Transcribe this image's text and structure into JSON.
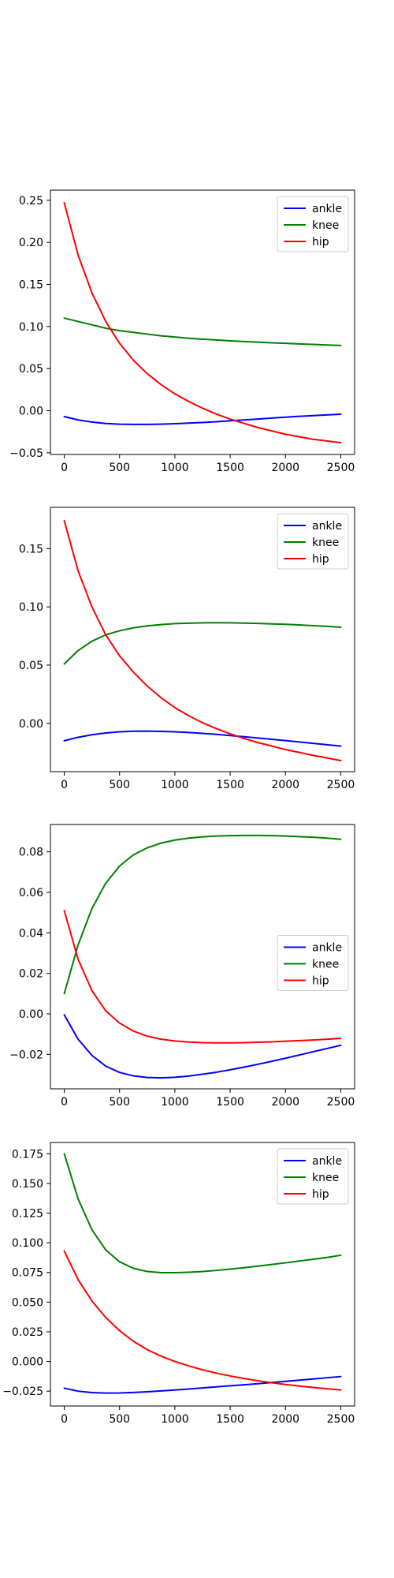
{
  "chart_data": [
    {
      "type": "line",
      "title": "",
      "xlabel": "",
      "ylabel": "",
      "xlim": [
        -125,
        2625
      ],
      "ylim": [
        -0.052,
        0.262
      ],
      "xticks": [
        0,
        500,
        1000,
        1500,
        2000,
        2500
      ],
      "yticks": [
        -0.05,
        0.0,
        0.05,
        0.1,
        0.15,
        0.2,
        0.25
      ],
      "ytick_labels": [
        "−0.05",
        "0.00",
        "0.05",
        "0.10",
        "0.15",
        "0.20",
        "0.25"
      ],
      "legend_position": "top-right",
      "grid": false,
      "x": [
        0,
        125,
        250,
        375,
        500,
        625,
        750,
        875,
        1000,
        1125,
        1250,
        1375,
        1500,
        1625,
        1750,
        1875,
        2000,
        2125,
        2250,
        2375,
        2500
      ],
      "series": [
        {
          "name": "ankle",
          "color": "#0000ff",
          "values": [
            -0.007,
            -0.011,
            -0.0135,
            -0.0152,
            -0.016,
            -0.0163,
            -0.0163,
            -0.016,
            -0.0155,
            -0.0148,
            -0.014,
            -0.0131,
            -0.0121,
            -0.011,
            -0.0099,
            -0.0088,
            -0.0077,
            -0.0067,
            -0.0058,
            -0.005,
            -0.0042
          ]
        },
        {
          "name": "knee",
          "color": "#008000",
          "values": [
            0.11,
            0.106,
            0.102,
            0.098,
            0.095,
            0.093,
            0.091,
            0.089,
            0.0875,
            0.086,
            0.085,
            0.084,
            0.083,
            0.0822,
            0.0814,
            0.0806,
            0.08,
            0.0793,
            0.0787,
            0.0781,
            0.0775
          ]
        },
        {
          "name": "hip",
          "color": "#ff0000",
          "values": [
            0.247,
            0.185,
            0.14,
            0.106,
            0.08,
            0.06,
            0.044,
            0.031,
            0.02,
            0.011,
            0.003,
            -0.004,
            -0.01,
            -0.015,
            -0.02,
            -0.024,
            -0.028,
            -0.031,
            -0.034,
            -0.036,
            -0.038
          ]
        }
      ]
    },
    {
      "type": "line",
      "title": "",
      "xlabel": "",
      "ylabel": "",
      "xlim": [
        -125,
        2625
      ],
      "ylim": [
        -0.0415,
        0.1855
      ],
      "xticks": [
        0,
        500,
        1000,
        1500,
        2000,
        2500
      ],
      "yticks": [
        0.0,
        0.05,
        0.1,
        0.15
      ],
      "ytick_labels": [
        "0.00",
        "0.05",
        "0.10",
        "0.15"
      ],
      "legend_position": "top-right",
      "grid": false,
      "x": [
        0,
        125,
        250,
        375,
        500,
        625,
        750,
        875,
        1000,
        1125,
        1250,
        1375,
        1500,
        1625,
        1750,
        1875,
        2000,
        2125,
        2250,
        2375,
        2500
      ],
      "series": [
        {
          "name": "ankle",
          "color": "#0000ff",
          "values": [
            -0.015,
            -0.012,
            -0.0098,
            -0.0083,
            -0.0073,
            -0.0068,
            -0.0067,
            -0.0069,
            -0.0073,
            -0.0079,
            -0.0086,
            -0.0095,
            -0.0105,
            -0.0115,
            -0.0126,
            -0.0137,
            -0.0148,
            -0.016,
            -0.0172,
            -0.0184,
            -0.0196
          ]
        },
        {
          "name": "knee",
          "color": "#008000",
          "values": [
            0.051,
            0.0625,
            0.0705,
            0.076,
            0.0795,
            0.082,
            0.0837,
            0.0848,
            0.0856,
            0.086,
            0.0863,
            0.0864,
            0.0863,
            0.0861,
            0.0858,
            0.0854,
            0.085,
            0.0845,
            0.0839,
            0.0833,
            0.0825
          ]
        },
        {
          "name": "hip",
          "color": "#ff0000",
          "values": [
            0.174,
            0.131,
            0.1,
            0.076,
            0.058,
            0.044,
            0.032,
            0.022,
            0.0135,
            0.0065,
            0.0005,
            -0.0045,
            -0.009,
            -0.013,
            -0.0165,
            -0.0195,
            -0.0225,
            -0.025,
            -0.0275,
            -0.0297,
            -0.032
          ]
        }
      ]
    },
    {
      "type": "line",
      "title": "",
      "xlabel": "",
      "ylabel": "",
      "xlim": [
        -125,
        2625
      ],
      "ylim": [
        -0.037,
        0.0935
      ],
      "xticks": [
        0,
        500,
        1000,
        1500,
        2000,
        2500
      ],
      "yticks": [
        -0.02,
        0.0,
        0.02,
        0.04,
        0.06,
        0.08
      ],
      "ytick_labels": [
        "−0.02",
        "0.00",
        "0.02",
        "0.04",
        "0.06",
        "0.08"
      ],
      "legend_position": "center-right",
      "grid": false,
      "x": [
        0,
        125,
        250,
        375,
        500,
        625,
        750,
        875,
        1000,
        1125,
        1250,
        1375,
        1500,
        1625,
        1750,
        1875,
        2000,
        2125,
        2250,
        2375,
        2500
      ],
      "series": [
        {
          "name": "ankle",
          "color": "#0000ff",
          "values": [
            -0.0005,
            -0.0125,
            -0.0205,
            -0.0258,
            -0.0289,
            -0.0306,
            -0.0314,
            -0.0316,
            -0.0313,
            -0.0307,
            -0.0298,
            -0.0288,
            -0.0276,
            -0.0263,
            -0.0249,
            -0.0234,
            -0.0219,
            -0.0203,
            -0.0187,
            -0.0171,
            -0.0155
          ]
        },
        {
          "name": "knee",
          "color": "#008000",
          "values": [
            0.01,
            0.034,
            0.052,
            0.0645,
            0.073,
            0.0785,
            0.082,
            0.0843,
            0.0858,
            0.0868,
            0.0874,
            0.0878,
            0.088,
            0.0881,
            0.0881,
            0.088,
            0.0878,
            0.0875,
            0.0872,
            0.0868,
            0.0862
          ]
        },
        {
          "name": "hip",
          "color": "#ff0000",
          "values": [
            0.051,
            0.027,
            0.0115,
            0.0015,
            -0.0045,
            -0.0085,
            -0.011,
            -0.0125,
            -0.0134,
            -0.0139,
            -0.0142,
            -0.0143,
            -0.0143,
            -0.0142,
            -0.014,
            -0.0138,
            -0.0135,
            -0.0132,
            -0.0129,
            -0.0125,
            -0.0121
          ]
        }
      ]
    },
    {
      "type": "line",
      "title": "",
      "xlabel": "",
      "ylabel": "",
      "xlim": [
        -125,
        2625
      ],
      "ylim": [
        -0.0375,
        0.1845
      ],
      "xticks": [
        0,
        500,
        1000,
        1500,
        2000,
        2500
      ],
      "yticks": [
        -0.025,
        0.0,
        0.025,
        0.05,
        0.075,
        0.1,
        0.125,
        0.15,
        0.175
      ],
      "ytick_labels": [
        "−0.025",
        "0.000",
        "0.025",
        "0.050",
        "0.075",
        "0.100",
        "0.125",
        "0.150",
        "0.175"
      ],
      "legend_position": "top-right",
      "grid": false,
      "x": [
        0,
        125,
        250,
        375,
        500,
        625,
        750,
        875,
        1000,
        1125,
        1250,
        1375,
        1500,
        1625,
        1750,
        1875,
        2000,
        2125,
        2250,
        2375,
        2500
      ],
      "series": [
        {
          "name": "ankle",
          "color": "#0000ff",
          "values": [
            -0.0225,
            -0.025,
            -0.0262,
            -0.0266,
            -0.0265,
            -0.0261,
            -0.0255,
            -0.0248,
            -0.024,
            -0.0232,
            -0.0223,
            -0.0214,
            -0.0205,
            -0.0196,
            -0.0187,
            -0.0177,
            -0.0167,
            -0.0157,
            -0.0147,
            -0.0137,
            -0.0127
          ]
        },
        {
          "name": "knee",
          "color": "#008000",
          "values": [
            0.175,
            0.137,
            0.111,
            0.094,
            0.084,
            0.0785,
            0.0758,
            0.0748,
            0.0748,
            0.0752,
            0.0758,
            0.0767,
            0.0778,
            0.079,
            0.0803,
            0.0817,
            0.0831,
            0.0846,
            0.0861,
            0.0876,
            0.0895
          ]
        },
        {
          "name": "hip",
          "color": "#ff0000",
          "values": [
            0.093,
            0.069,
            0.051,
            0.037,
            0.026,
            0.017,
            0.01,
            0.0045,
            0.0,
            -0.0037,
            -0.007,
            -0.0098,
            -0.0122,
            -0.0143,
            -0.0162,
            -0.0179,
            -0.0194,
            -0.0207,
            -0.0219,
            -0.023,
            -0.024
          ]
        }
      ]
    }
  ]
}
